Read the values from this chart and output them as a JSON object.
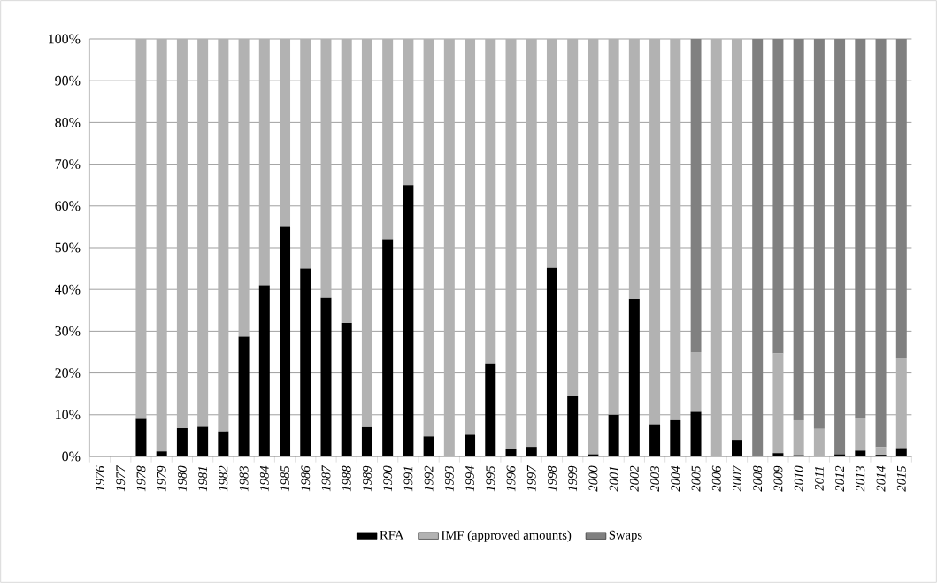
{
  "chart_data": {
    "type": "bar",
    "stacked": true,
    "categories": [
      "1976",
      "1977",
      "1978",
      "1979",
      "1980",
      "1981",
      "1982",
      "1983",
      "1984",
      "1985",
      "1986",
      "1987",
      "1988",
      "1989",
      "1990",
      "1991",
      "1992",
      "1993",
      "1994",
      "1995",
      "1996",
      "1997",
      "1998",
      "1999",
      "2000",
      "2001",
      "2002",
      "2003",
      "2004",
      "2005",
      "2006",
      "2007",
      "2008",
      "2009",
      "2010",
      "2011",
      "2012",
      "2013",
      "2014",
      "2015"
    ],
    "series": [
      {
        "name": "RFA",
        "color": "#000000",
        "values": [
          0,
          0,
          9,
          1.2,
          6.8,
          7.1,
          6,
          28.7,
          41,
          55,
          45,
          38,
          32,
          7,
          52,
          65,
          4.8,
          0,
          5.2,
          22.3,
          1.9,
          2.3,
          45.2,
          14.4,
          0.5,
          10,
          37.7,
          7.7,
          8.7,
          10.7,
          0,
          4,
          0,
          0.8,
          0.3,
          0,
          0.5,
          1.4,
          0.4,
          2
        ]
      },
      {
        "name": "IMF (approved amounts)",
        "color": "#b2b2b2",
        "values": [
          0,
          0,
          91,
          98.8,
          93.2,
          92.9,
          94,
          71.3,
          59,
          45,
          55,
          62,
          68,
          93,
          48,
          35,
          95.2,
          100,
          94.8,
          77.7,
          98.1,
          97.7,
          54.8,
          85.6,
          99.5,
          90,
          62.3,
          92.3,
          91.3,
          14.3,
          100,
          96,
          0,
          23.9,
          8.4,
          6.6,
          0,
          7.8,
          1.8,
          21.5
        ]
      },
      {
        "name": "Swaps",
        "color": "#808080",
        "values": [
          0,
          0,
          0,
          0,
          0,
          0,
          0,
          0,
          0,
          0,
          0,
          0,
          0,
          0,
          0,
          0,
          0,
          0,
          0,
          0,
          0,
          0,
          0,
          0,
          0,
          0,
          0,
          0,
          0,
          75,
          0,
          0,
          100,
          75.3,
          91.3,
          93.4,
          99.5,
          90.8,
          97.8,
          76.5
        ]
      }
    ],
    "ylim": [
      0,
      100
    ],
    "yticks": [
      {
        "value": 0,
        "label": "0%"
      },
      {
        "value": 10,
        "label": "10%"
      },
      {
        "value": 20,
        "label": "20%"
      },
      {
        "value": 30,
        "label": "30%"
      },
      {
        "value": 40,
        "label": "40%"
      },
      {
        "value": 50,
        "label": "50%"
      },
      {
        "value": 60,
        "label": "60%"
      },
      {
        "value": 70,
        "label": "70%"
      },
      {
        "value": 80,
        "label": "80%"
      },
      {
        "value": 90,
        "label": "90%"
      },
      {
        "value": 100,
        "label": "100%"
      }
    ],
    "grid": "y",
    "legend": "bottom"
  }
}
